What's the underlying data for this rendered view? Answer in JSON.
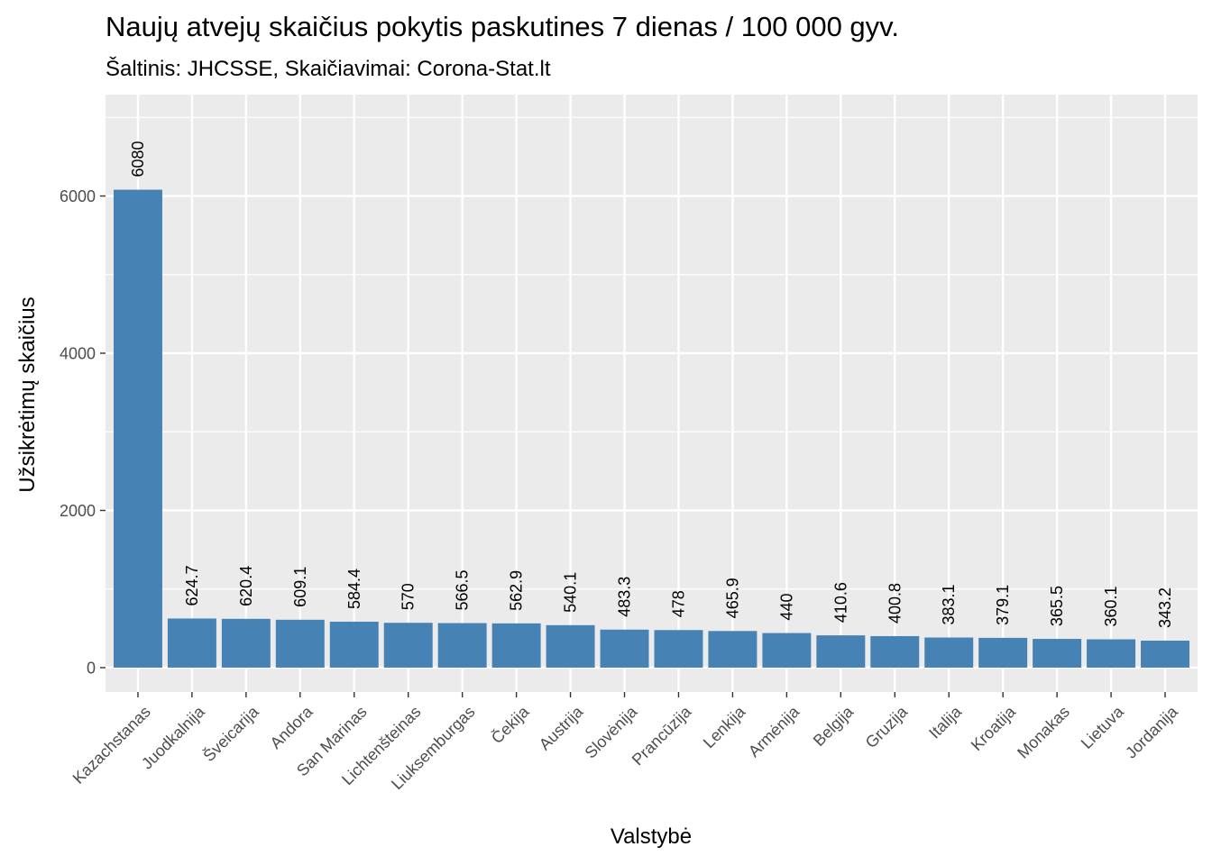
{
  "chart_data": {
    "type": "bar",
    "title": "Naujų atvejų skaičius pokytis paskutines 7 dienas / 100 000 gyv.",
    "subtitle": "Šaltinis: JHCSSE, Skaičiavimai: Corona-Stat.lt",
    "xlabel": "Valstybė",
    "ylabel": "Užsikrėtimų skaičius",
    "ylim": [
      -310,
      7290
    ],
    "yticks": [
      0,
      2000,
      4000,
      6000
    ],
    "ytick_labels": [
      "0",
      "2000",
      "4000",
      "6000"
    ],
    "grid": true,
    "bar_color": "#4682b4",
    "panel_color": "#ebebeb",
    "categories": [
      "Kazachstanas",
      "Juodkalnija",
      "Šveicarija",
      "Andora",
      "San Marinas",
      "Lichtenšteinas",
      "Liuksemburgas",
      "Čekija",
      "Austrija",
      "Slovėnija",
      "Prancūzija",
      "Lenkija",
      "Armėnija",
      "Belgija",
      "Gruzija",
      "Italija",
      "Kroatija",
      "Monakas",
      "Lietuva",
      "Jordanija"
    ],
    "values": [
      6080,
      624.7,
      620.4,
      609.1,
      584.4,
      570,
      566.5,
      562.9,
      540.1,
      483.3,
      478,
      465.9,
      440,
      410.6,
      400.8,
      383.1,
      379.1,
      365.5,
      360.1,
      343.2
    ],
    "value_labels": [
      "6080",
      "624.7",
      "620.4",
      "609.1",
      "584.4",
      "570",
      "566.5",
      "562.9",
      "540.1",
      "483.3",
      "478",
      "465.9",
      "440",
      "410.6",
      "400.8",
      "383.1",
      "379.1",
      "365.5",
      "360.1",
      "343.2"
    ]
  }
}
